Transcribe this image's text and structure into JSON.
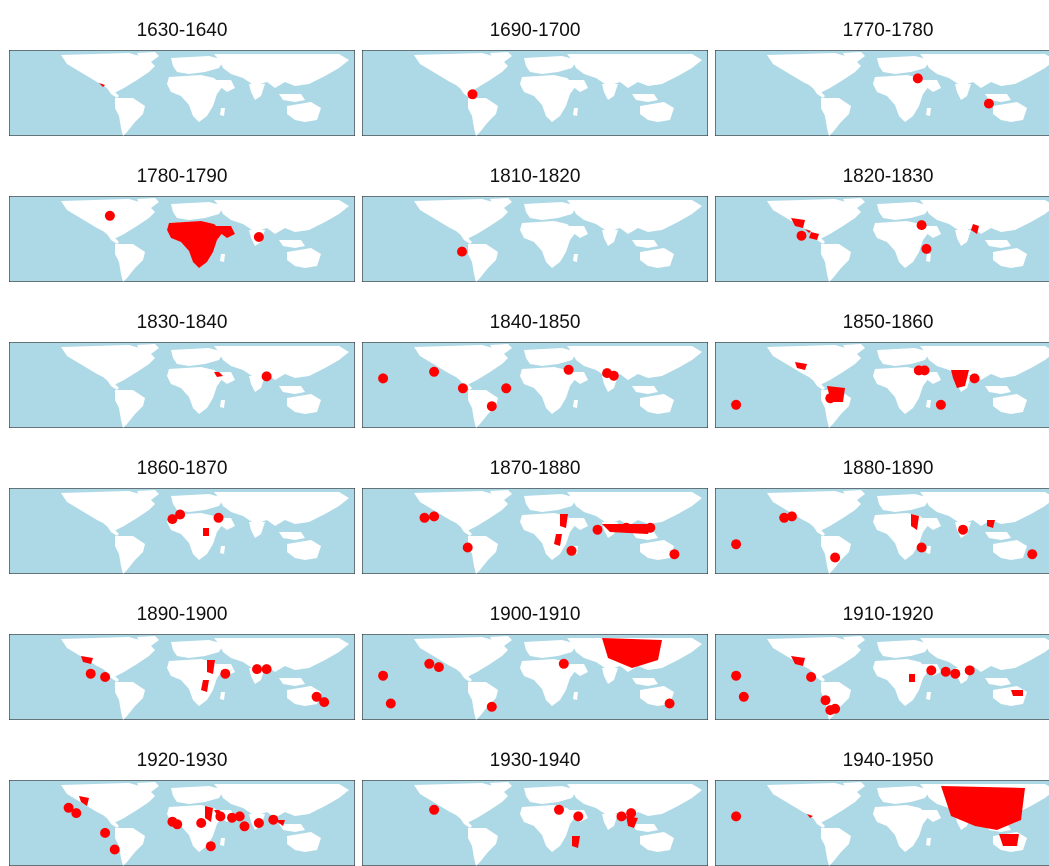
{
  "colors": {
    "ocean": "#add8e6",
    "land": "#ffffff",
    "highlight": "#ff0000",
    "border": "#333333"
  },
  "panels": [
    {
      "title": "1630-1640",
      "regions": [
        "caribbean"
      ],
      "points": []
    },
    {
      "title": "1690-1700",
      "regions": [],
      "points": [
        [
          -65,
          8
        ]
      ]
    },
    {
      "title": "1770-1780",
      "regions": [],
      "points": [
        [
          31,
          32
        ],
        [
          105,
          -6
        ]
      ]
    },
    {
      "title": "1780-1790",
      "regions": [
        "africa",
        "arabia"
      ],
      "points": [
        [
          -75,
          45
        ],
        [
          80,
          13
        ]
      ]
    },
    {
      "title": "1810-1820",
      "regions": [],
      "points": [
        [
          -76,
          -9
        ]
      ]
    },
    {
      "title": "1820-1830",
      "regions": [
        "mexico",
        "colombia",
        "caribbean",
        "burma"
      ],
      "points": [
        [
          -90,
          15
        ],
        [
          35,
          31
        ],
        [
          40,
          -5
        ]
      ]
    },
    {
      "title": "1830-1840",
      "regions": [
        "arabia-coast"
      ],
      "points": [
        [
          88,
          23
        ]
      ]
    },
    {
      "title": "1840-1850",
      "regions": [],
      "points": [
        [
          -158,
          20
        ],
        [
          -105,
          30
        ],
        [
          -75,
          5
        ],
        [
          -30,
          5
        ],
        [
          35,
          33
        ],
        [
          75,
          28
        ],
        [
          82,
          24
        ],
        [
          -45,
          -22
        ]
      ]
    },
    {
      "title": "1850-1860",
      "regions": [
        "mexico-north",
        "brazil",
        "india"
      ],
      "points": [
        [
          -158,
          -20
        ],
        [
          -60,
          -10
        ],
        [
          32,
          32
        ],
        [
          38,
          32
        ],
        [
          90,
          20
        ],
        [
          55,
          -20
        ]
      ]
    },
    {
      "title": "1860-1870",
      "regions": [
        "east-africa-inland"
      ],
      "points": [
        [
          -10,
          28
        ],
        [
          -2,
          35
        ],
        [
          38,
          30
        ]
      ]
    },
    {
      "title": "1870-1880",
      "regions": [
        "nile-red",
        "east-africa-coast",
        "sea-asia"
      ],
      "points": [
        [
          -115,
          30
        ],
        [
          -105,
          32
        ],
        [
          -70,
          -15
        ],
        [
          38,
          -20
        ],
        [
          65,
          12
        ],
        [
          95,
          15
        ],
        [
          120,
          15
        ],
        [
          145,
          -25
        ]
      ]
    },
    {
      "title": "1880-1890",
      "regions": [
        "nile-corridor",
        "vietnam"
      ],
      "points": [
        [
          -108,
          30
        ],
        [
          -100,
          32
        ],
        [
          -158,
          -10
        ],
        [
          -55,
          -30
        ],
        [
          35,
          -15
        ],
        [
          150,
          -25
        ],
        [
          78,
          12
        ]
      ]
    },
    {
      "title": "1890-1900",
      "regions": [
        "mexico-pacific",
        "east-africa-coast",
        "nile-red"
      ],
      "points": [
        [
          -95,
          15
        ],
        [
          -80,
          10
        ],
        [
          45,
          15
        ],
        [
          78,
          22
        ],
        [
          88,
          22
        ],
        [
          140,
          -20
        ],
        [
          148,
          -28
        ]
      ]
    },
    {
      "title": "1900-1910",
      "regions": [
        "east-asia-sea"
      ],
      "points": [
        [
          -158,
          12
        ],
        [
          -110,
          30
        ],
        [
          -100,
          25
        ],
        [
          -150,
          -30
        ],
        [
          30,
          30
        ],
        [
          -45,
          -35
        ],
        [
          140,
          -30
        ]
      ]
    },
    {
      "title": "1910-1920",
      "regions": [
        "mexico",
        "east-africa-inland",
        "northern-australia"
      ],
      "points": [
        [
          -158,
          12
        ],
        [
          -80,
          10
        ],
        [
          -150,
          -20
        ],
        [
          -65,
          -25
        ],
        [
          -60,
          -40
        ],
        [
          -55,
          -38
        ],
        [
          45,
          20
        ],
        [
          60,
          18
        ],
        [
          70,
          15
        ],
        [
          85,
          20
        ]
      ]
    },
    {
      "title": "1920-1930",
      "regions": [
        "western-mexico",
        "nile-corridor",
        "arabia-coast",
        "se-asia-small"
      ],
      "points": [
        [
          -118,
          33
        ],
        [
          -110,
          25
        ],
        [
          -80,
          -5
        ],
        [
          -70,
          -30
        ],
        [
          -10,
          12
        ],
        [
          -5,
          8
        ],
        [
          20,
          10
        ],
        [
          30,
          -25
        ],
        [
          40,
          20
        ],
        [
          52,
          18
        ],
        [
          60,
          20
        ],
        [
          65,
          5
        ],
        [
          80,
          10
        ],
        [
          95,
          15
        ]
      ]
    },
    {
      "title": "1930-1940",
      "regions": [
        "sumatra-malaya",
        "madagascar"
      ],
      "points": [
        [
          -105,
          30
        ],
        [
          25,
          30
        ],
        [
          45,
          20
        ],
        [
          90,
          20
        ],
        [
          100,
          25
        ]
      ]
    },
    {
      "title": "1940-1950",
      "regions": [
        "asia-pacific",
        "australia",
        "caribbean-small"
      ],
      "points": [
        [
          -158,
          20
        ]
      ]
    }
  ]
}
